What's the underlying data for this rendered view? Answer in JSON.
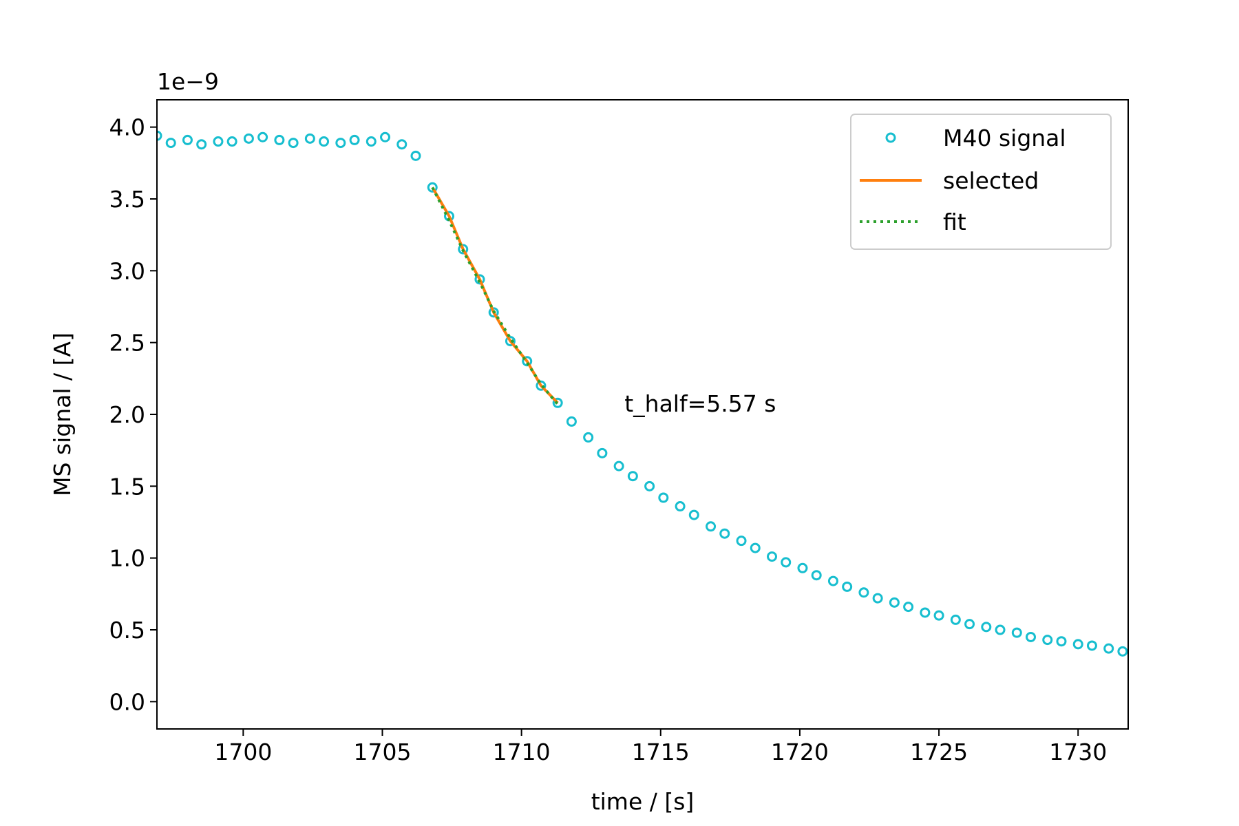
{
  "chart_data": {
    "type": "scatter",
    "xlabel": "time / [s]",
    "ylabel": "MS signal / [A]",
    "y_offset_label": "1e−9",
    "xlim": [
      1696.9,
      1731.8
    ],
    "ylim": [
      -0.19,
      4.19
    ],
    "y_scale": 1e-09,
    "x_ticks": [
      1700,
      1705,
      1710,
      1715,
      1720,
      1725,
      1730
    ],
    "x_tick_labels": [
      "1700",
      "1705",
      "1710",
      "1715",
      "1720",
      "1725",
      "1730"
    ],
    "y_ticks": [
      0.0,
      0.5,
      1.0,
      1.5,
      2.0,
      2.5,
      3.0,
      3.5,
      4.0
    ],
    "y_tick_labels": [
      "0.0",
      "0.5",
      "1.0",
      "1.5",
      "2.0",
      "2.5",
      "3.0",
      "3.5",
      "4.0"
    ],
    "grid": false,
    "legend_position": "top-right",
    "annotation": {
      "text": "t_half=5.57 s",
      "x": 1713.7,
      "y": 2.02
    },
    "series": [
      {
        "name": "M40 signal",
        "style": "markers",
        "color": "#17becf",
        "x": [
          1696.9,
          1697.4,
          1698.0,
          1698.5,
          1699.1,
          1699.6,
          1700.2,
          1700.7,
          1701.3,
          1701.8,
          1702.4,
          1702.9,
          1703.5,
          1704.0,
          1704.6,
          1705.1,
          1705.7,
          1706.2,
          1706.8,
          1707.4,
          1707.9,
          1708.5,
          1709.0,
          1709.6,
          1710.2,
          1710.7,
          1711.3,
          1711.8,
          1712.4,
          1712.9,
          1713.5,
          1714.0,
          1714.6,
          1715.1,
          1715.7,
          1716.2,
          1716.8,
          1717.3,
          1717.9,
          1718.4,
          1719.0,
          1719.5,
          1720.1,
          1720.6,
          1721.2,
          1721.7,
          1722.3,
          1722.8,
          1723.4,
          1723.9,
          1724.5,
          1725.0,
          1725.6,
          1726.1,
          1726.7,
          1727.2,
          1727.8,
          1728.3,
          1728.9,
          1729.4,
          1730.0,
          1730.5,
          1731.1,
          1731.6
        ],
        "y": [
          3.94,
          3.89,
          3.91,
          3.88,
          3.9,
          3.9,
          3.92,
          3.93,
          3.91,
          3.89,
          3.92,
          3.9,
          3.89,
          3.91,
          3.9,
          3.93,
          3.88,
          3.8,
          3.58,
          3.38,
          3.15,
          2.94,
          2.71,
          2.51,
          2.37,
          2.2,
          2.08,
          1.95,
          1.84,
          1.73,
          1.64,
          1.57,
          1.5,
          1.42,
          1.36,
          1.3,
          1.22,
          1.17,
          1.12,
          1.07,
          1.01,
          0.97,
          0.93,
          0.88,
          0.84,
          0.8,
          0.76,
          0.72,
          0.69,
          0.66,
          0.62,
          0.6,
          0.57,
          0.54,
          0.52,
          0.5,
          0.48,
          0.45,
          0.43,
          0.42,
          0.4,
          0.39,
          0.37,
          0.35
        ]
      },
      {
        "name": "selected",
        "style": "solid",
        "color": "#ff7f0e",
        "x": [
          1706.8,
          1707.4,
          1707.9,
          1708.5,
          1709.0,
          1709.6,
          1710.2,
          1710.7,
          1711.3
        ],
        "y": [
          3.58,
          3.38,
          3.15,
          2.94,
          2.71,
          2.51,
          2.37,
          2.2,
          2.08
        ]
      },
      {
        "name": "fit",
        "style": "dotted",
        "color": "#2ca02c",
        "x": [
          1706.8,
          1707.4,
          1707.9,
          1708.5,
          1709.0,
          1709.6,
          1710.2,
          1710.7,
          1711.3
        ],
        "y": [
          3.58,
          3.35,
          3.14,
          2.92,
          2.72,
          2.53,
          2.36,
          2.21,
          2.07
        ]
      }
    ]
  }
}
